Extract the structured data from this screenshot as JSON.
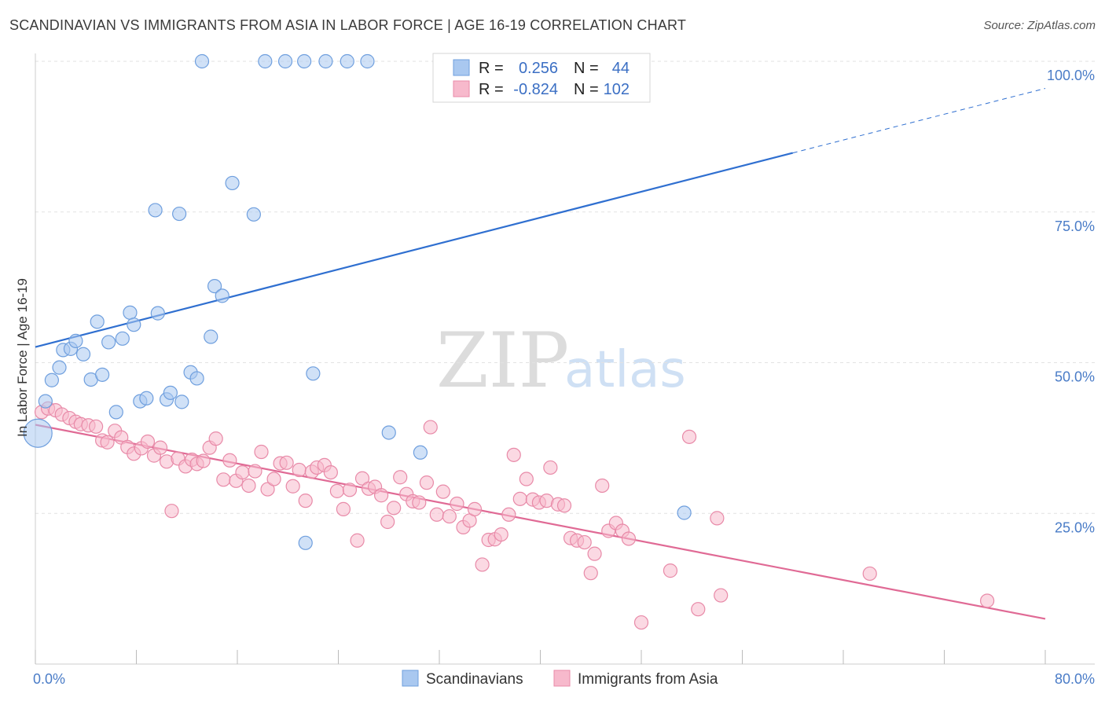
{
  "title": "SCANDINAVIAN VS IMMIGRANTS FROM ASIA IN LABOR FORCE | AGE 16-19 CORRELATION CHART",
  "source": "Source: ZipAtlas.com",
  "watermark": {
    "zip": "ZIP",
    "atlas": "atlas"
  },
  "legend": {
    "r_label": "R =",
    "n_label": "N =",
    "rows": [
      {
        "r": "0.256",
        "n": "44",
        "color": "#a9c8f0",
        "stroke": "#6f9fde"
      },
      {
        "r": "-0.824",
        "n": "102",
        "color": "#f7b9cc",
        "stroke": "#e88aa8"
      }
    ]
  },
  "chart_data": {
    "type": "scatter",
    "xlabel": "",
    "ylabel": "In Labor Force | Age 16-19",
    "xlim": [
      0,
      80
    ],
    "ylim": [
      0,
      100
    ],
    "x_tick_labels": [
      "0.0%",
      "80.0%"
    ],
    "y_ticks": [
      {
        "value": 25,
        "label": "25.0%"
      },
      {
        "value": 50,
        "label": "50.0%"
      },
      {
        "value": 75,
        "label": "75.0%"
      },
      {
        "value": 100,
        "label": "100.0%"
      }
    ],
    "grid": "horizontal dashed",
    "series": [
      {
        "name": "Scandinavians",
        "color": "#a9c8f0",
        "stroke": "#6f9fde",
        "trend_color": "#2f6fd0",
        "trend": {
          "x0": 0,
          "y0": 52.6,
          "x1": 60,
          "y1": 84.8,
          "dashed_to_x": 80,
          "dashed_to_y": 95.5
        },
        "points": [
          {
            "x": 0.2,
            "y": 38.3,
            "big": true
          },
          {
            "x": 0.8,
            "y": 43.6
          },
          {
            "x": 1.3,
            "y": 47.1
          },
          {
            "x": 1.9,
            "y": 49.2
          },
          {
            "x": 2.2,
            "y": 52.1
          },
          {
            "x": 2.8,
            "y": 52.3
          },
          {
            "x": 3.2,
            "y": 53.6
          },
          {
            "x": 3.8,
            "y": 51.4
          },
          {
            "x": 4.4,
            "y": 47.2
          },
          {
            "x": 4.9,
            "y": 56.8
          },
          {
            "x": 5.3,
            "y": 48.0
          },
          {
            "x": 5.8,
            "y": 53.4
          },
          {
            "x": 6.4,
            "y": 41.8
          },
          {
            "x": 6.9,
            "y": 54.0
          },
          {
            "x": 7.5,
            "y": 58.3
          },
          {
            "x": 7.8,
            "y": 56.3
          },
          {
            "x": 8.3,
            "y": 43.6
          },
          {
            "x": 8.8,
            "y": 44.1
          },
          {
            "x": 9.5,
            "y": 75.3
          },
          {
            "x": 9.7,
            "y": 58.2
          },
          {
            "x": 10.4,
            "y": 43.9
          },
          {
            "x": 10.7,
            "y": 45.0
          },
          {
            "x": 11.4,
            "y": 74.7
          },
          {
            "x": 11.6,
            "y": 43.5
          },
          {
            "x": 12.3,
            "y": 48.4
          },
          {
            "x": 12.8,
            "y": 47.4
          },
          {
            "x": 13.2,
            "y": 100
          },
          {
            "x": 13.9,
            "y": 54.3
          },
          {
            "x": 14.2,
            "y": 62.7
          },
          {
            "x": 14.8,
            "y": 61.1
          },
          {
            "x": 15.6,
            "y": 79.8
          },
          {
            "x": 17.3,
            "y": 74.6
          },
          {
            "x": 18.2,
            "y": 100
          },
          {
            "x": 19.8,
            "y": 100
          },
          {
            "x": 21.3,
            "y": 100
          },
          {
            "x": 21.4,
            "y": 20.1
          },
          {
            "x": 22.0,
            "y": 48.2
          },
          {
            "x": 23.0,
            "y": 100
          },
          {
            "x": 24.7,
            "y": 100
          },
          {
            "x": 26.3,
            "y": 100
          },
          {
            "x": 28.0,
            "y": 38.4
          },
          {
            "x": 30.5,
            "y": 35.1
          },
          {
            "x": 43.0,
            "y": 100
          },
          {
            "x": 51.4,
            "y": 25.1
          }
        ]
      },
      {
        "name": "Immigrants from Asia",
        "color": "#f7b9cc",
        "stroke": "#e88aa8",
        "trend_color": "#e06a95",
        "trend": {
          "x0": 0,
          "y0": 39.7,
          "x1": 80,
          "y1": 7.5
        },
        "points": [
          {
            "x": 0.5,
            "y": 41.8
          },
          {
            "x": 1.0,
            "y": 42.4
          },
          {
            "x": 1.6,
            "y": 42.1
          },
          {
            "x": 2.1,
            "y": 41.4
          },
          {
            "x": 2.7,
            "y": 40.8
          },
          {
            "x": 3.2,
            "y": 40.2
          },
          {
            "x": 3.6,
            "y": 39.8
          },
          {
            "x": 4.2,
            "y": 39.6
          },
          {
            "x": 4.8,
            "y": 39.4
          },
          {
            "x": 5.3,
            "y": 37.1
          },
          {
            "x": 5.7,
            "y": 36.8
          },
          {
            "x": 6.3,
            "y": 38.7
          },
          {
            "x": 6.8,
            "y": 37.6
          },
          {
            "x": 7.3,
            "y": 36.0
          },
          {
            "x": 7.8,
            "y": 34.9
          },
          {
            "x": 8.4,
            "y": 35.8
          },
          {
            "x": 8.9,
            "y": 36.9
          },
          {
            "x": 9.4,
            "y": 34.6
          },
          {
            "x": 9.9,
            "y": 35.9
          },
          {
            "x": 10.4,
            "y": 33.6
          },
          {
            "x": 10.8,
            "y": 25.4
          },
          {
            "x": 11.3,
            "y": 34.1
          },
          {
            "x": 11.9,
            "y": 32.8
          },
          {
            "x": 12.4,
            "y": 33.9
          },
          {
            "x": 12.8,
            "y": 33.2
          },
          {
            "x": 13.3,
            "y": 33.7
          },
          {
            "x": 13.8,
            "y": 35.9
          },
          {
            "x": 14.3,
            "y": 37.4
          },
          {
            "x": 14.9,
            "y": 30.6
          },
          {
            "x": 15.4,
            "y": 33.8
          },
          {
            "x": 15.9,
            "y": 30.4
          },
          {
            "x": 16.4,
            "y": 31.8
          },
          {
            "x": 16.9,
            "y": 29.6
          },
          {
            "x": 17.4,
            "y": 32.0
          },
          {
            "x": 17.9,
            "y": 35.2
          },
          {
            "x": 18.4,
            "y": 29.0
          },
          {
            "x": 18.9,
            "y": 30.7
          },
          {
            "x": 19.4,
            "y": 33.3
          },
          {
            "x": 19.9,
            "y": 33.4
          },
          {
            "x": 20.4,
            "y": 29.5
          },
          {
            "x": 20.9,
            "y": 32.2
          },
          {
            "x": 21.4,
            "y": 27.1
          },
          {
            "x": 21.9,
            "y": 31.9
          },
          {
            "x": 22.3,
            "y": 32.6
          },
          {
            "x": 22.9,
            "y": 33.0
          },
          {
            "x": 23.4,
            "y": 31.8
          },
          {
            "x": 23.9,
            "y": 28.7
          },
          {
            "x": 24.4,
            "y": 25.7
          },
          {
            "x": 24.9,
            "y": 28.9
          },
          {
            "x": 25.5,
            "y": 20.5
          },
          {
            "x": 25.9,
            "y": 30.8
          },
          {
            "x": 26.4,
            "y": 29.1
          },
          {
            "x": 26.9,
            "y": 29.4
          },
          {
            "x": 27.4,
            "y": 28.0
          },
          {
            "x": 27.9,
            "y": 23.6
          },
          {
            "x": 28.4,
            "y": 25.9
          },
          {
            "x": 28.9,
            "y": 31.0
          },
          {
            "x": 29.4,
            "y": 28.2
          },
          {
            "x": 29.9,
            "y": 27.0
          },
          {
            "x": 30.4,
            "y": 26.8
          },
          {
            "x": 31.0,
            "y": 30.1
          },
          {
            "x": 31.3,
            "y": 39.3
          },
          {
            "x": 31.8,
            "y": 24.8
          },
          {
            "x": 32.3,
            "y": 28.6
          },
          {
            "x": 32.8,
            "y": 24.5
          },
          {
            "x": 33.4,
            "y": 26.6
          },
          {
            "x": 33.9,
            "y": 22.7
          },
          {
            "x": 34.4,
            "y": 23.8
          },
          {
            "x": 34.8,
            "y": 25.7
          },
          {
            "x": 35.4,
            "y": 16.5
          },
          {
            "x": 35.9,
            "y": 20.6
          },
          {
            "x": 36.4,
            "y": 20.7
          },
          {
            "x": 36.9,
            "y": 21.5
          },
          {
            "x": 37.5,
            "y": 24.8
          },
          {
            "x": 37.9,
            "y": 34.7
          },
          {
            "x": 38.4,
            "y": 27.4
          },
          {
            "x": 38.9,
            "y": 30.7
          },
          {
            "x": 39.4,
            "y": 27.3
          },
          {
            "x": 39.9,
            "y": 26.8
          },
          {
            "x": 40.5,
            "y": 27.1
          },
          {
            "x": 40.8,
            "y": 32.6
          },
          {
            "x": 41.4,
            "y": 26.5
          },
          {
            "x": 41.9,
            "y": 26.3
          },
          {
            "x": 42.4,
            "y": 20.9
          },
          {
            "x": 42.9,
            "y": 20.5
          },
          {
            "x": 43.5,
            "y": 20.2
          },
          {
            "x": 44.0,
            "y": 15.1
          },
          {
            "x": 44.3,
            "y": 18.3
          },
          {
            "x": 44.9,
            "y": 29.6
          },
          {
            "x": 45.4,
            "y": 22.1
          },
          {
            "x": 46.0,
            "y": 23.4
          },
          {
            "x": 46.5,
            "y": 22.1
          },
          {
            "x": 47.0,
            "y": 20.8
          },
          {
            "x": 48.0,
            "y": 6.9
          },
          {
            "x": 50.3,
            "y": 15.5
          },
          {
            "x": 51.8,
            "y": 37.7
          },
          {
            "x": 52.5,
            "y": 9.1
          },
          {
            "x": 54.0,
            "y": 24.2
          },
          {
            "x": 54.3,
            "y": 11.4
          },
          {
            "x": 66.1,
            "y": 15.0
          },
          {
            "x": 75.4,
            "y": 10.5
          }
        ]
      }
    ]
  }
}
